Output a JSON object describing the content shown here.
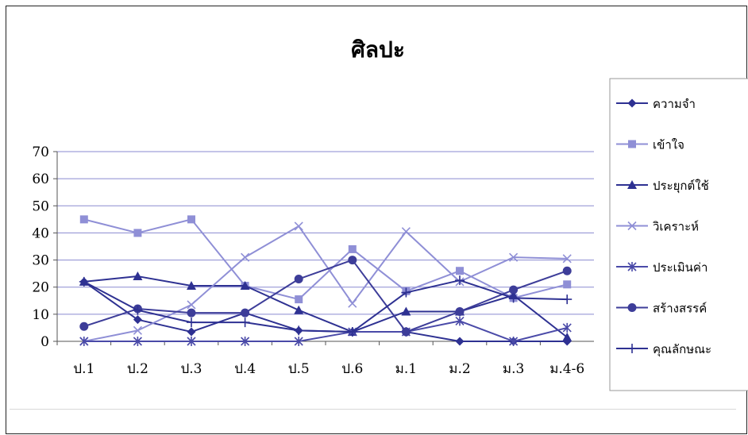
{
  "chart_data": {
    "type": "line",
    "title": "ศิลปะ",
    "xlabel": "",
    "ylabel": "",
    "categories": [
      "ป.1",
      "ป.2",
      "ป.3",
      "ป.4",
      "ป.5",
      "ป.6",
      "ม.1",
      "ม.2",
      "ม.3",
      "ม.4-6"
    ],
    "ylim": [
      0,
      70
    ],
    "yticks": [
      "0",
      "10",
      "20",
      "30",
      "40",
      "50",
      "60",
      "70"
    ],
    "grid": true,
    "legend_position": "right",
    "series": [
      {
        "name": "ความจำ",
        "marker": "diamond",
        "color": "#2e3192",
        "values": [
          22,
          8,
          3.5,
          10.5,
          4,
          3.5,
          3.5,
          0,
          0,
          0
        ]
      },
      {
        "name": "เข้าใจ",
        "marker": "square",
        "color": "#8f8fd6",
        "values": [
          45,
          40,
          45,
          20.5,
          15.5,
          34,
          18.5,
          26,
          16,
          21
        ]
      },
      {
        "name": "ประยุกต์ใช้",
        "marker": "triangle",
        "color": "#2e3192",
        "values": [
          22,
          24,
          20.5,
          20.5,
          11.5,
          3.5,
          11,
          11,
          17,
          1.5
        ]
      },
      {
        "name": "วิเคราะห์",
        "marker": "x",
        "color": "#8f8fd6",
        "values": [
          0,
          4,
          13.5,
          31,
          42.5,
          14,
          40.5,
          22,
          31,
          30.5
        ]
      },
      {
        "name": "ประเมินค่า",
        "marker": "star",
        "color": "#4a4aa8",
        "values": [
          0,
          0,
          0,
          0,
          0,
          3.5,
          3.5,
          7.5,
          0,
          5
        ]
      },
      {
        "name": "สร้างสรรค์",
        "marker": "circle",
        "color": "#3d3d99",
        "values": [
          5.5,
          12,
          10.5,
          10.5,
          23,
          30,
          3.5,
          11,
          19,
          26
        ]
      },
      {
        "name": "คุณลักษณะ",
        "marker": "plus",
        "color": "#2e3192",
        "values": [
          22,
          11.5,
          7,
          7,
          4,
          3.5,
          18,
          22.5,
          16,
          15.5
        ]
      }
    ]
  }
}
